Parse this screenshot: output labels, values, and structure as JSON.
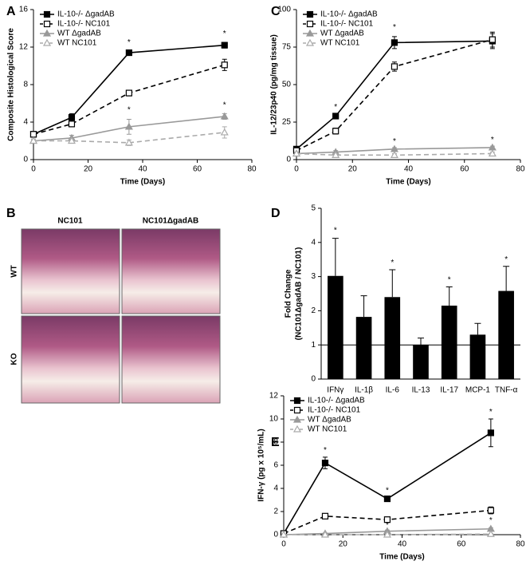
{
  "chart_data": [
    {
      "type": "line",
      "panel_label": "A",
      "xlabel": "Time (Days)",
      "ylabel": [
        "Composite Histological Score"
      ],
      "x": [
        0,
        14,
        35,
        70
      ],
      "xlim": [
        0,
        80
      ],
      "xticks": [
        0,
        20,
        40,
        60,
        80
      ],
      "ylim": [
        0,
        16
      ],
      "yticks": [
        0,
        4,
        8,
        12,
        16
      ],
      "series": [
        {
          "name": "IL-10-/- ΔgadAB",
          "color": "#000000",
          "marker": "square",
          "filled": true,
          "dashed": false,
          "values": [
            2.7,
            4.5,
            11.4,
            12.2
          ],
          "errors": [
            0.2,
            0.4,
            0.2,
            0.3
          ]
        },
        {
          "name": "IL-10-/- NC101",
          "color": "#000000",
          "marker": "square",
          "filled": false,
          "dashed": true,
          "values": [
            2.7,
            3.8,
            7.1,
            10.1
          ],
          "errors": [
            0.2,
            0.3,
            0.3,
            0.6
          ]
        },
        {
          "name": "WT ΔgadAB",
          "color": "#999999",
          "marker": "triangle",
          "filled": true,
          "dashed": false,
          "values": [
            2.0,
            2.3,
            3.5,
            4.6
          ],
          "errors": [
            0.2,
            0.3,
            0.8,
            0.3
          ]
        },
        {
          "name": "WT NC101",
          "color": "#aaaaaa",
          "marker": "triangle",
          "filled": false,
          "dashed": true,
          "values": [
            2.0,
            2.0,
            1.8,
            2.9
          ],
          "errors": [
            0.1,
            0.2,
            0.3,
            0.6
          ]
        }
      ],
      "annotations": [
        {
          "text": "*",
          "x": 35,
          "y": 12.5
        },
        {
          "text": "*",
          "x": 70,
          "y": 13.4
        },
        {
          "text": "*",
          "x": 35,
          "y": 5.3
        },
        {
          "text": "*",
          "x": 70,
          "y": 5.8
        }
      ]
    },
    {
      "type": "line",
      "panel_label": "C",
      "xlabel": "Time (Days)",
      "ylabel": [
        "IL-12/23p40 (pg/mg tissue)"
      ],
      "x": [
        0,
        14,
        35,
        70
      ],
      "xlim": [
        0,
        80
      ],
      "xticks": [
        0,
        20,
        40,
        60,
        80
      ],
      "ylim": [
        0,
        100
      ],
      "yticks": [
        0,
        25,
        50,
        75,
        100
      ],
      "series": [
        {
          "name": "IL-10-/- ΔgadAB",
          "color": "#000000",
          "marker": "square",
          "filled": true,
          "dashed": false,
          "values": [
            7,
            29,
            78,
            79
          ],
          "errors": [
            1,
            1.5,
            4,
            5
          ]
        },
        {
          "name": "IL-10-/- NC101",
          "color": "#000000",
          "marker": "square",
          "filled": false,
          "dashed": true,
          "values": [
            6,
            19,
            62,
            80
          ],
          "errors": [
            1,
            2,
            3,
            5
          ]
        },
        {
          "name": "WT ΔgadAB",
          "color": "#999999",
          "marker": "triangle",
          "filled": true,
          "dashed": false,
          "values": [
            4,
            5,
            7,
            8
          ],
          "errors": [
            1,
            1,
            1,
            1
          ]
        },
        {
          "name": "WT NC101",
          "color": "#aaaaaa",
          "marker": "triangle",
          "filled": false,
          "dashed": true,
          "values": [
            4,
            3,
            3,
            4
          ],
          "errors": [
            1,
            1,
            1,
            1
          ]
        }
      ],
      "annotations": [
        {
          "text": "*",
          "x": 14,
          "y": 35
        },
        {
          "text": "*",
          "x": 35,
          "y": 88
        },
        {
          "text": "*",
          "x": 35,
          "y": 12
        },
        {
          "text": "*",
          "x": 70,
          "y": 13
        }
      ]
    },
    {
      "type": "bar",
      "panel_label": "D",
      "ylabel": [
        "Fold Change",
        "(NC101ΔgadAB / NC101)"
      ],
      "categories": [
        "IFNγ",
        "IL-1β",
        "IL-6",
        "IL-13",
        "IL-17",
        "MCP-1",
        "TNF-α"
      ],
      "values": [
        3.02,
        1.82,
        2.4,
        1.0,
        2.15,
        1.3,
        2.58
      ],
      "errors": [
        1.1,
        0.62,
        0.8,
        0.2,
        0.55,
        0.33,
        0.72
      ],
      "color": "#000000",
      "ylim": [
        0,
        5
      ],
      "yticks": [
        0,
        1,
        2,
        3,
        4,
        5
      ],
      "reference_line": 1,
      "annotations": [
        {
          "text": "*",
          "x": 0,
          "y": 4.35
        },
        {
          "text": "*",
          "x": 2,
          "y": 3.4
        },
        {
          "text": "*",
          "x": 4,
          "y": 2.9
        },
        {
          "text": "*",
          "x": 6,
          "y": 3.5
        }
      ]
    },
    {
      "type": "line",
      "panel_label": "E",
      "xlabel": "Time (Days)",
      "ylabel": [
        "IFN-γ (pg x 10⁵/mL)"
      ],
      "x": [
        0,
        14,
        35,
        70
      ],
      "xlim": [
        0,
        80
      ],
      "xticks": [
        0,
        20,
        40,
        60,
        80
      ],
      "ylim": [
        0,
        12
      ],
      "yticks": [
        0,
        2,
        4,
        6,
        8,
        10,
        12
      ],
      "series": [
        {
          "name": "IL-10-/- ΔgadAB",
          "color": "#000000",
          "marker": "square",
          "filled": true,
          "dashed": false,
          "values": [
            0.1,
            6.2,
            3.1,
            8.8
          ],
          "errors": [
            0.1,
            0.5,
            0.15,
            1.2
          ]
        },
        {
          "name": "IL-10-/- NC101",
          "color": "#000000",
          "marker": "square",
          "filled": false,
          "dashed": true,
          "values": [
            0.1,
            1.6,
            1.3,
            2.1
          ],
          "errors": [
            0.05,
            0.2,
            0.1,
            0.3
          ]
        },
        {
          "name": "WT ΔgadAB",
          "color": "#999999",
          "marker": "triangle",
          "filled": true,
          "dashed": false,
          "values": [
            0,
            0.1,
            0.3,
            0.5
          ],
          "errors": [
            0.02,
            0.05,
            0.1,
            0.1
          ]
        },
        {
          "name": "WT NC101",
          "color": "#aaaaaa",
          "marker": "triangle",
          "filled": false,
          "dashed": true,
          "values": [
            0,
            0,
            0,
            0.05
          ],
          "errors": [
            0.02,
            0.02,
            0.02,
            0.05
          ]
        }
      ],
      "annotations": [
        {
          "text": "*",
          "x": 14,
          "y": 7.3
        },
        {
          "text": "*",
          "x": 35,
          "y": 3.8
        },
        {
          "text": "*",
          "x": 70,
          "y": 10.6
        },
        {
          "text": "*",
          "x": 35,
          "y": 0.8
        },
        {
          "text": "*",
          "x": 70,
          "y": 1.2
        }
      ]
    }
  ],
  "histology": {
    "panel_label": "B",
    "columns": [
      "NC101",
      "NC101ΔgadAB"
    ],
    "rows": [
      "WT",
      "KO"
    ]
  }
}
